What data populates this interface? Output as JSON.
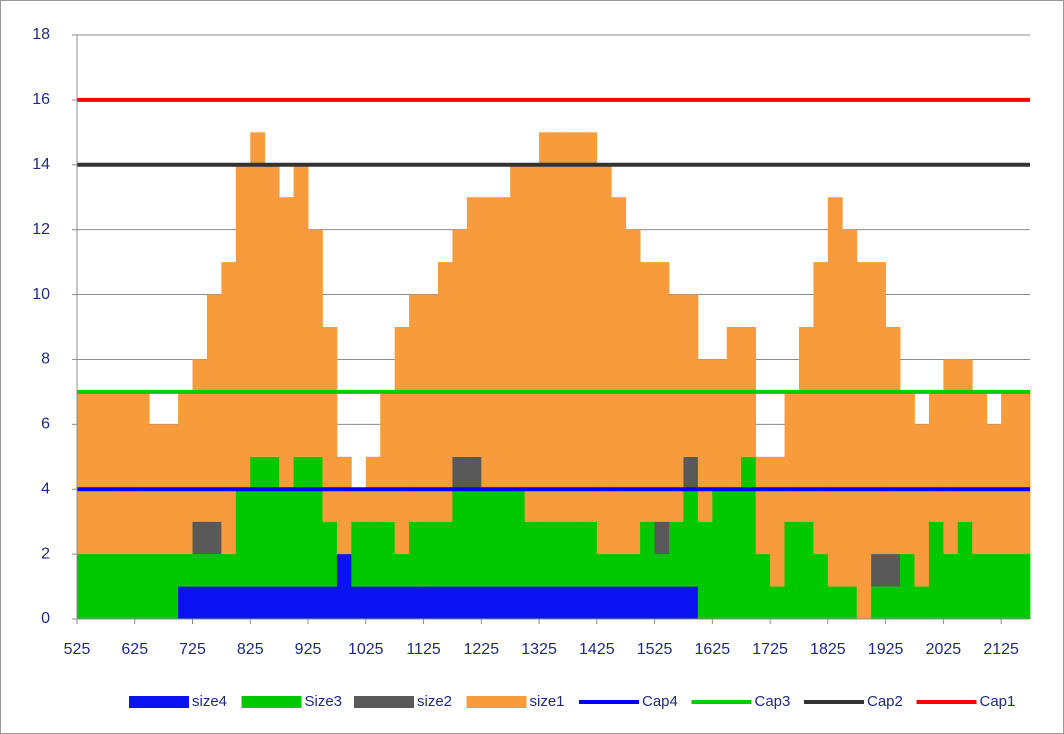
{
  "chart_data": {
    "type": "stacked-step-area",
    "x": [
      525,
      550,
      575,
      600,
      625,
      650,
      675,
      700,
      725,
      750,
      775,
      800,
      825,
      850,
      875,
      900,
      925,
      950,
      975,
      1000,
      1025,
      1050,
      1075,
      1100,
      1125,
      1150,
      1175,
      1200,
      1225,
      1250,
      1275,
      1300,
      1325,
      1350,
      1375,
      1400,
      1425,
      1450,
      1475,
      1500,
      1525,
      1550,
      1575,
      1600,
      1625,
      1650,
      1675,
      1700,
      1725,
      1750,
      1775,
      1800,
      1825,
      1850,
      1875,
      1900,
      1925,
      1950,
      1975,
      2000,
      2025,
      2050,
      2075,
      2100,
      2125,
      2150
    ],
    "series": [
      {
        "name": "size4",
        "color": "#0a14f0",
        "values": [
          0,
          0,
          0,
          0,
          0,
          0,
          0,
          1,
          1,
          1,
          1,
          1,
          1,
          1,
          1,
          1,
          1,
          1,
          2,
          1,
          1,
          1,
          1,
          1,
          1,
          1,
          1,
          1,
          1,
          1,
          1,
          1,
          1,
          1,
          1,
          1,
          1,
          1,
          1,
          1,
          1,
          1,
          1,
          0,
          0,
          0,
          0,
          0,
          0,
          0,
          0,
          0,
          0,
          0,
          0,
          0,
          0,
          0,
          0,
          0,
          0,
          0,
          0,
          0,
          0,
          0
        ]
      },
      {
        "name": "Size3",
        "color": "#00c800",
        "values": [
          2,
          2,
          2,
          2,
          2,
          2,
          2,
          1,
          1,
          1,
          1,
          3,
          4,
          4,
          3,
          4,
          4,
          2,
          0,
          2,
          2,
          2,
          1,
          2,
          2,
          2,
          3,
          3,
          3,
          3,
          3,
          2,
          2,
          2,
          2,
          2,
          1,
          1,
          1,
          2,
          1,
          2,
          3,
          3,
          4,
          4,
          5,
          2,
          1,
          3,
          3,
          2,
          1,
          1,
          0,
          1,
          1,
          2,
          1,
          3,
          2,
          3,
          2,
          2,
          2,
          2
        ]
      },
      {
        "name": "size2",
        "color": "#595959",
        "values": [
          0,
          0,
          0,
          0,
          0,
          0,
          0,
          0,
          1,
          1,
          0,
          0,
          0,
          0,
          0,
          0,
          0,
          0,
          0,
          0,
          0,
          0,
          0,
          0,
          0,
          0,
          1,
          1,
          0,
          0,
          0,
          0,
          0,
          0,
          0,
          0,
          0,
          0,
          0,
          0,
          1,
          0,
          1,
          0,
          0,
          0,
          0,
          0,
          0,
          0,
          0,
          0,
          0,
          0,
          0,
          1,
          1,
          0,
          0,
          0,
          0,
          0,
          0,
          0,
          0,
          0
        ]
      },
      {
        "name": "size1",
        "color": "#f89b3c",
        "values": [
          5,
          5,
          5,
          5,
          5,
          4,
          4,
          5,
          5,
          7,
          9,
          10,
          10,
          9,
          9,
          9,
          7,
          6,
          3,
          1,
          2,
          4,
          7,
          7,
          7,
          8,
          7,
          8,
          9,
          9,
          10,
          11,
          12,
          12,
          12,
          12,
          12,
          11,
          10,
          8,
          8,
          7,
          5,
          5,
          4,
          5,
          4,
          3,
          4,
          4,
          6,
          9,
          12,
          11,
          11,
          9,
          7,
          5,
          5,
          4,
          6,
          5,
          5,
          4,
          5,
          5
        ]
      }
    ],
    "lines": [
      {
        "name": "Cap4",
        "color": "#0000ff",
        "value": 4
      },
      {
        "name": "Cap3",
        "color": "#00cc00",
        "value": 7
      },
      {
        "name": "Cap2",
        "color": "#333333",
        "value": 14
      },
      {
        "name": "Cap1",
        "color": "#ff0000",
        "value": 16
      }
    ],
    "xlim": [
      525,
      2175
    ],
    "xticks": [
      525,
      625,
      725,
      825,
      925,
      1025,
      1125,
      1225,
      1325,
      1425,
      1525,
      1625,
      1725,
      1825,
      1925,
      2025,
      2125
    ],
    "ylim": [
      0,
      18
    ],
    "yticks": [
      0,
      2,
      4,
      6,
      8,
      10,
      12,
      14,
      16,
      18
    ],
    "grid": true
  }
}
